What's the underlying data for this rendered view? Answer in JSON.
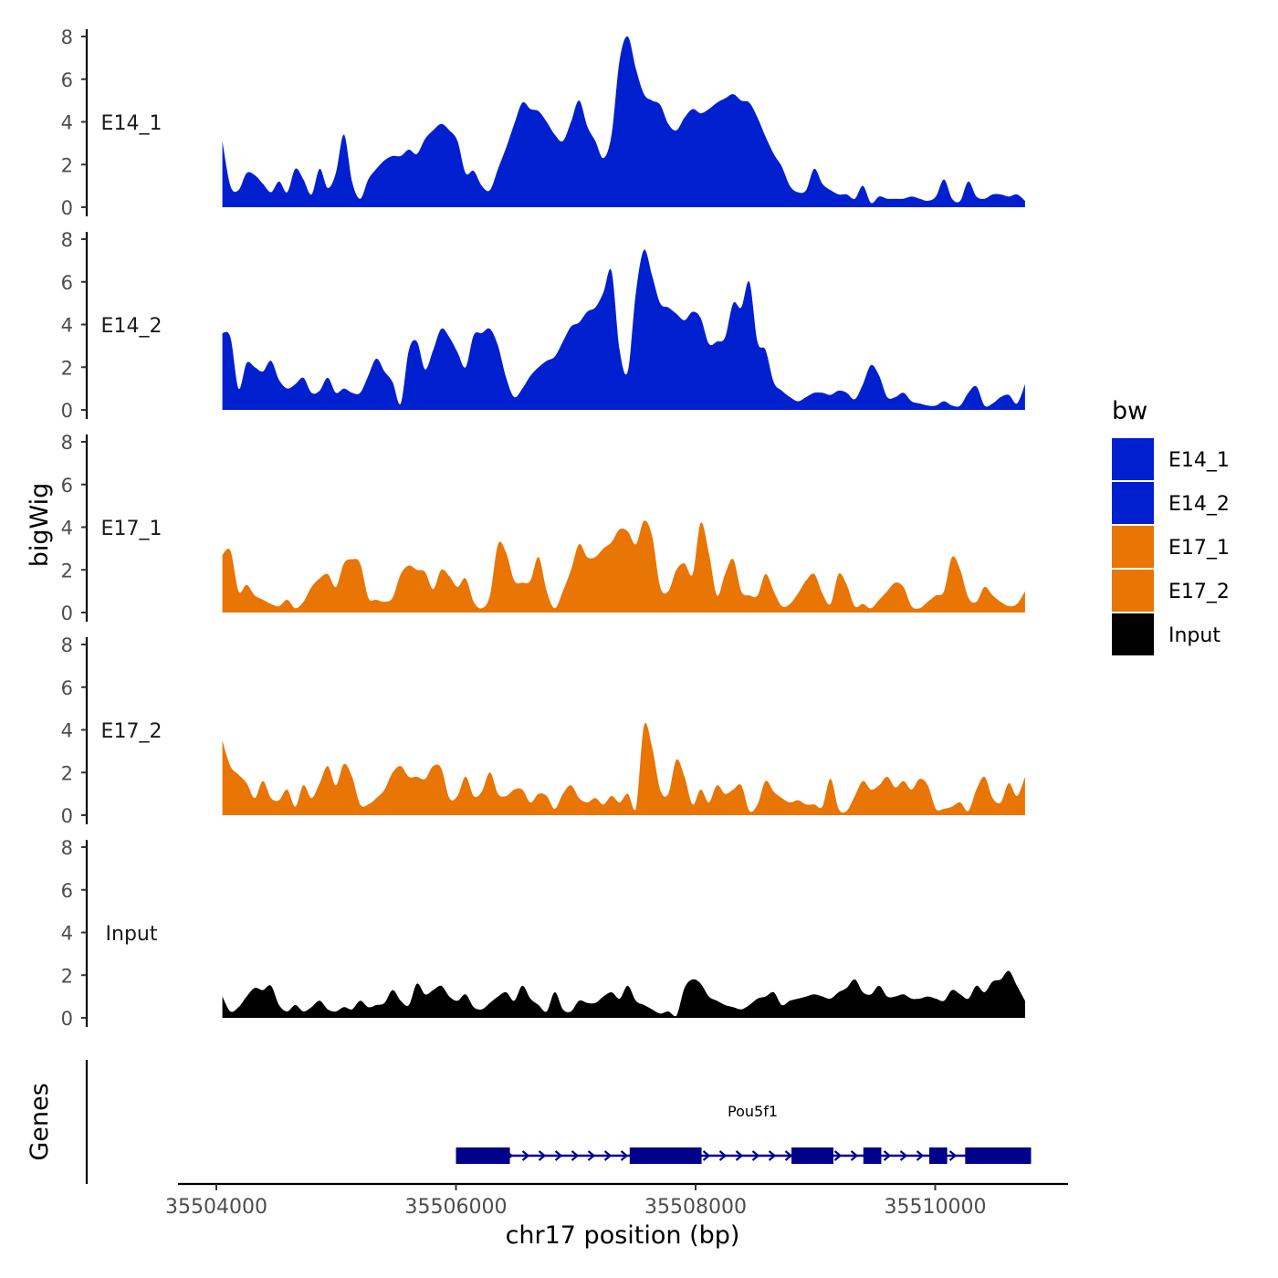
{
  "chart_data": {
    "type": "area",
    "ylabel": "bigWig",
    "xlabel": "chr17 position (bp)",
    "genes_label": "Genes",
    "yticks": [
      "0",
      "2",
      "4",
      "6",
      "8"
    ],
    "ylim": [
      0,
      8.4
    ],
    "xlim": [
      35503600,
      35511200
    ],
    "xticks": [
      35504000,
      35506000,
      35508000,
      35510000
    ],
    "xtick_labels": [
      "35504000",
      "35506000",
      "35508000",
      "35510000"
    ],
    "legend": {
      "title": "bw",
      "items": [
        {
          "label": "E14_1",
          "color": "#0020D0"
        },
        {
          "label": "E14_2",
          "color": "#0020D0"
        },
        {
          "label": "E17_1",
          "color": "#E87504"
        },
        {
          "label": "E17_2",
          "color": "#E87504"
        },
        {
          "label": "Input",
          "color": "#000000"
        }
      ]
    },
    "track_range": [
      35504050,
      35510750
    ],
    "series": [
      {
        "name": "E14_1",
        "color": "#0020D0",
        "values": [
          3.1,
          1.0,
          0.8,
          1.6,
          1.5,
          1.1,
          0.7,
          1.2,
          0.7,
          1.8,
          1.3,
          0.6,
          1.8,
          0.9,
          1.6,
          3.4,
          1.2,
          0.4,
          1.3,
          1.8,
          2.2,
          2.4,
          2.4,
          2.7,
          2.5,
          3.2,
          3.6,
          3.9,
          3.6,
          3.1,
          1.6,
          1.7,
          1.0,
          0.8,
          1.8,
          2.8,
          3.9,
          4.9,
          4.6,
          4.5,
          4.0,
          3.4,
          3.1,
          4.0,
          5.0,
          3.8,
          3.1,
          2.3,
          3.4,
          6.9,
          8.0,
          6.5,
          5.3,
          5.0,
          4.8,
          3.9,
          3.6,
          4.2,
          4.6,
          4.4,
          4.6,
          4.9,
          5.1,
          5.3,
          5.0,
          4.9,
          4.2,
          3.3,
          2.5,
          1.9,
          1.0,
          0.7,
          0.8,
          1.8,
          1.1,
          0.8,
          0.6,
          0.6,
          0.4,
          1.0,
          0.2,
          0.5,
          0.4,
          0.4,
          0.4,
          0.5,
          0.4,
          0.3,
          0.5,
          1.3,
          0.4,
          0.3,
          1.2,
          0.5,
          0.4,
          0.6,
          0.6,
          0.5,
          0.6,
          0.3
        ]
      },
      {
        "name": "E14_2",
        "color": "#0020D0",
        "values": [
          3.6,
          3.4,
          1.0,
          2.2,
          2.0,
          1.8,
          2.3,
          1.4,
          1.0,
          1.2,
          1.5,
          0.8,
          0.9,
          1.5,
          0.8,
          1.0,
          0.8,
          0.8,
          1.6,
          2.4,
          1.8,
          1.3,
          0.3,
          2.8,
          3.2,
          1.9,
          2.8,
          3.8,
          3.4,
          2.7,
          2.0,
          3.5,
          3.6,
          3.8,
          3.0,
          1.5,
          0.6,
          1.0,
          1.6,
          2.0,
          2.3,
          2.5,
          3.2,
          3.9,
          4.1,
          4.6,
          4.8,
          5.5,
          6.5,
          2.8,
          1.8,
          5.5,
          7.5,
          6.3,
          5.0,
          4.8,
          4.5,
          4.2,
          4.6,
          4.3,
          3.1,
          3.2,
          3.4,
          5.0,
          4.8,
          6.0,
          3.2,
          2.8,
          1.3,
          0.9,
          0.6,
          0.4,
          0.6,
          0.8,
          0.8,
          0.7,
          0.9,
          0.8,
          0.5,
          1.2,
          2.1,
          1.6,
          0.6,
          0.6,
          0.8,
          0.4,
          0.3,
          0.2,
          0.2,
          0.4,
          0.2,
          0.2,
          0.8,
          1.1,
          0.2,
          0.3,
          0.6,
          0.7,
          0.3,
          1.2
        ]
      },
      {
        "name": "E17_1",
        "color": "#E87504",
        "values": [
          2.7,
          2.9,
          1.0,
          1.3,
          0.8,
          0.6,
          0.4,
          0.3,
          0.6,
          0.2,
          0.5,
          1.2,
          1.6,
          1.8,
          1.2,
          2.3,
          2.5,
          2.3,
          0.7,
          0.6,
          0.5,
          0.7,
          1.8,
          2.2,
          2.0,
          1.9,
          1.1,
          2.0,
          1.7,
          1.2,
          1.6,
          0.5,
          0.2,
          0.8,
          3.2,
          2.8,
          1.5,
          1.4,
          1.5,
          2.6,
          1.0,
          0.2,
          1.0,
          2.0,
          3.2,
          2.6,
          2.6,
          3.0,
          3.3,
          3.9,
          3.8,
          3.2,
          4.3,
          3.6,
          1.2,
          1.0,
          2.0,
          2.3,
          1.8,
          4.2,
          2.8,
          0.8,
          1.8,
          2.5,
          1.0,
          0.8,
          0.8,
          1.8,
          1.0,
          0.3,
          0.4,
          0.9,
          1.5,
          1.8,
          0.9,
          0.4,
          1.8,
          1.3,
          0.3,
          0.4,
          0.2,
          0.6,
          1.0,
          1.4,
          1.2,
          0.3,
          0.2,
          0.5,
          0.8,
          1.0,
          2.6,
          2.0,
          0.7,
          0.5,
          1.2,
          0.8,
          0.5,
          0.3,
          0.4,
          1.0
        ]
      },
      {
        "name": "E17_2",
        "color": "#E87504",
        "values": [
          3.5,
          2.3,
          1.9,
          1.5,
          0.8,
          1.6,
          0.8,
          0.7,
          1.2,
          0.4,
          1.4,
          0.8,
          1.5,
          2.3,
          1.4,
          2.4,
          1.8,
          0.5,
          0.5,
          0.8,
          1.2,
          2.0,
          2.3,
          1.8,
          1.8,
          1.7,
          2.3,
          2.2,
          0.8,
          0.9,
          1.8,
          0.9,
          1.1,
          2.0,
          1.0,
          0.9,
          1.2,
          1.2,
          0.6,
          1.0,
          0.9,
          0.3,
          1.0,
          1.4,
          0.8,
          0.6,
          0.8,
          0.5,
          0.9,
          0.6,
          1.0,
          0.3,
          4.2,
          3.2,
          1.2,
          1.0,
          2.6,
          1.8,
          0.5,
          1.2,
          0.6,
          1.4,
          1.0,
          1.2,
          1.4,
          0.2,
          0.5,
          1.6,
          1.1,
          0.8,
          0.6,
          0.7,
          0.5,
          0.5,
          0.4,
          1.7,
          0.3,
          0.2,
          0.9,
          1.6,
          1.2,
          1.4,
          1.8,
          1.3,
          1.6,
          1.2,
          1.7,
          1.4,
          0.3,
          0.3,
          0.4,
          0.6,
          0.2,
          1.2,
          1.8,
          0.8,
          0.6,
          1.5,
          0.9,
          1.8
        ]
      },
      {
        "name": "Input",
        "color": "#000000",
        "values": [
          1.0,
          0.3,
          0.5,
          1.0,
          1.4,
          1.3,
          1.5,
          0.6,
          0.3,
          0.6,
          0.3,
          0.5,
          0.8,
          0.4,
          0.3,
          0.5,
          0.4,
          0.8,
          0.5,
          0.6,
          0.7,
          1.3,
          0.8,
          0.6,
          1.6,
          1.1,
          1.3,
          1.5,
          1.0,
          0.8,
          1.1,
          0.5,
          0.4,
          0.7,
          1.0,
          1.2,
          0.8,
          1.5,
          0.9,
          0.6,
          0.3,
          1.2,
          0.4,
          0.3,
          0.8,
          0.7,
          0.7,
          1.0,
          1.2,
          0.9,
          1.5,
          0.8,
          0.6,
          0.4,
          0.2,
          0.3,
          0.1,
          1.4,
          1.8,
          1.6,
          1.0,
          0.8,
          0.6,
          0.5,
          0.4,
          0.6,
          0.9,
          1.0,
          1.2,
          0.6,
          0.8,
          0.9,
          1.0,
          1.1,
          1.0,
          0.9,
          1.2,
          1.4,
          1.8,
          1.2,
          1.1,
          1.5,
          1.0,
          1.0,
          1.1,
          0.9,
          0.9,
          1.0,
          0.9,
          0.8,
          1.3,
          1.1,
          0.9,
          1.5,
          1.2,
          1.7,
          1.8,
          2.2,
          1.5,
          0.8
        ]
      }
    ],
    "genes": {
      "name": "Pou5f1",
      "color": "#00008B",
      "line": [
        35506000,
        35510800
      ],
      "exons": [
        [
          35506000,
          35506450
        ],
        [
          35507450,
          35508050
        ],
        [
          35508800,
          35509150
        ],
        [
          35509400,
          35509550
        ],
        [
          35509950,
          35510100
        ],
        [
          35510250,
          35510800
        ]
      ]
    }
  }
}
